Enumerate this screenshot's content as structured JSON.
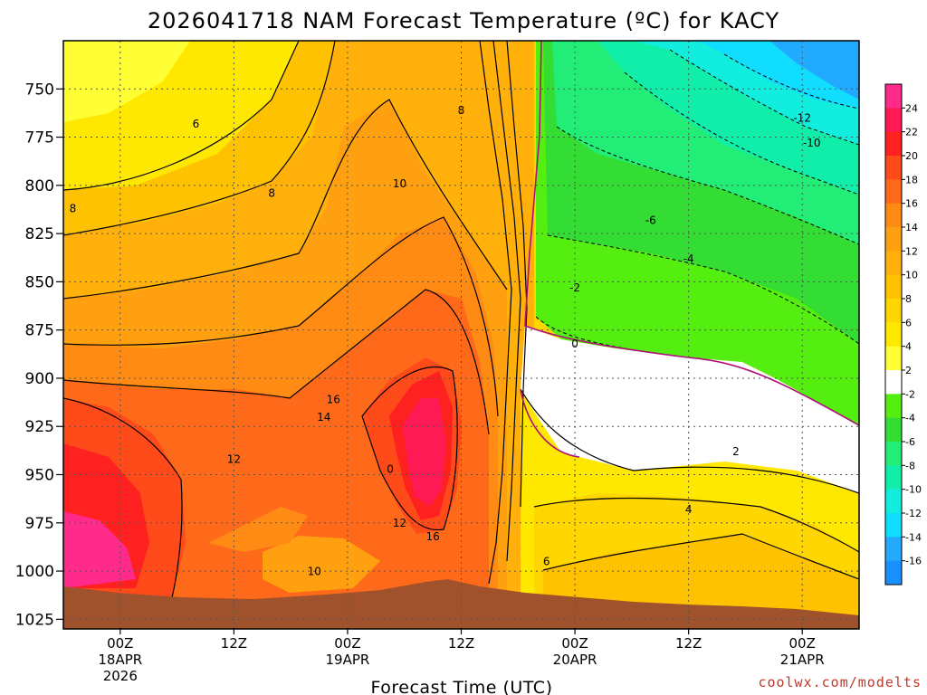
{
  "title": "2026041718 NAM Forecast Temperature (ºC) for KACY",
  "credit": "coolwx.com/modelts",
  "chart_data": {
    "type": "heatmap",
    "title": "2026041718 NAM Forecast Temperature (ºC) for KACY",
    "xlabel": "Forecast Time (UTC)",
    "ylabel": "",
    "y_scale": "pressure (hPa), reversed",
    "ylim": [
      1030,
      725
    ],
    "yticks": [
      750,
      775,
      800,
      825,
      850,
      875,
      900,
      925,
      950,
      975,
      1000,
      1025
    ],
    "xticks": [
      {
        "hour": 6,
        "lines": [
          "00Z",
          "18APR",
          "2026"
        ]
      },
      {
        "hour": 18,
        "lines": [
          "12Z"
        ]
      },
      {
        "hour": 30,
        "lines": [
          "00Z",
          "19APR"
        ]
      },
      {
        "hour": 42,
        "lines": [
          "12Z"
        ]
      },
      {
        "hour": 54,
        "lines": [
          "00Z",
          "20APR"
        ]
      },
      {
        "hour": 66,
        "lines": [
          "12Z"
        ]
      },
      {
        "hour": 78,
        "lines": [
          "00Z",
          "21APR"
        ]
      }
    ],
    "xlim": [
      0,
      84
    ],
    "grid": true,
    "colorbar": {
      "position": "right",
      "levels": [
        24,
        22,
        20,
        18,
        16,
        14,
        12,
        10,
        8,
        6,
        4,
        2,
        -2,
        -4,
        -6,
        -8,
        -10,
        -12,
        -14,
        -16
      ],
      "colors": [
        "#ff2a8a",
        "#ff1a55",
        "#ff2020",
        "#ff4a1a",
        "#ff6a1a",
        "#ff8a14",
        "#ffa010",
        "#ffb00a",
        "#ffc200",
        "#ffd600",
        "#ffe800",
        "#ffff33",
        "#ffffff",
        "#55ee11",
        "#33dd33",
        "#22ee77",
        "#11eeaa",
        "#11eedd",
        "#11ddff",
        "#22aaff",
        "#1890ff"
      ]
    },
    "contour_labels": [
      {
        "value": "6",
        "time": 14.0,
        "p": 770
      },
      {
        "value": "8",
        "time": 1.0,
        "p": 814
      },
      {
        "value": "8",
        "time": 22.0,
        "p": 806
      },
      {
        "value": "10",
        "time": 35.5,
        "p": 801
      },
      {
        "value": "8",
        "time": 42.0,
        "p": 763
      },
      {
        "value": "12",
        "time": 18.0,
        "p": 944
      },
      {
        "value": "16",
        "time": 28.5,
        "p": 913
      },
      {
        "value": "14",
        "time": 27.5,
        "p": 922
      },
      {
        "value": "0",
        "time": 34.5,
        "p": 949
      },
      {
        "value": "12",
        "time": 35.5,
        "p": 977
      },
      {
        "value": "16",
        "time": 39.0,
        "p": 984
      },
      {
        "value": "10",
        "time": 26.5,
        "p": 1002
      },
      {
        "value": "6",
        "time": 51.0,
        "p": 997
      },
      {
        "value": "-2",
        "time": 54.0,
        "p": 855
      },
      {
        "value": "0",
        "time": 54.0,
        "p": 884
      },
      {
        "value": "-6",
        "time": 62.0,
        "p": 820
      },
      {
        "value": "-4",
        "time": 66.0,
        "p": 840
      },
      {
        "value": "-12",
        "time": 78.0,
        "p": 767
      },
      {
        "value": "-10",
        "time": 79.0,
        "p": 780
      },
      {
        "value": "2",
        "time": 71.0,
        "p": 940
      },
      {
        "value": "4",
        "time": 66.0,
        "p": 970
      }
    ]
  }
}
